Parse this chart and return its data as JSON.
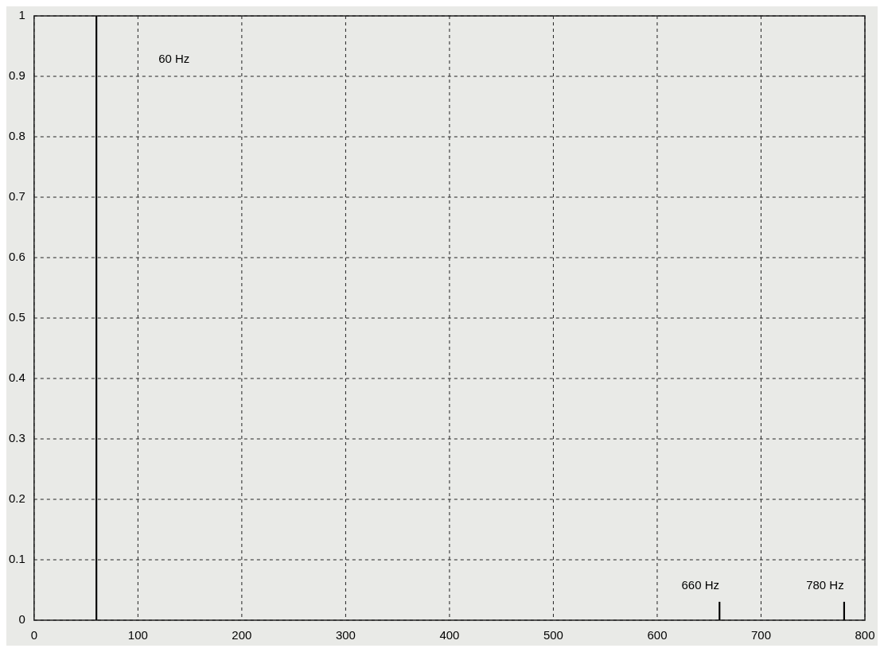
{
  "chart_data": {
    "type": "bar",
    "x": [
      60,
      660,
      780
    ],
    "values": [
      1,
      0.03,
      0.03
    ],
    "color": "#000000",
    "xlim": [
      0,
      800
    ],
    "xticks": [
      0,
      100,
      200,
      300,
      400,
      500,
      600,
      700,
      800
    ],
    "ylim": [
      0,
      1
    ],
    "yticks": [
      0,
      0.1,
      0.2,
      0.3,
      0.4,
      0.5,
      0.6,
      0.7,
      0.8,
      0.9,
      1
    ],
    "grid": true,
    "legend": false,
    "annotations": [
      "60 Hz",
      "660 Hz",
      "780 Hz"
    ]
  }
}
